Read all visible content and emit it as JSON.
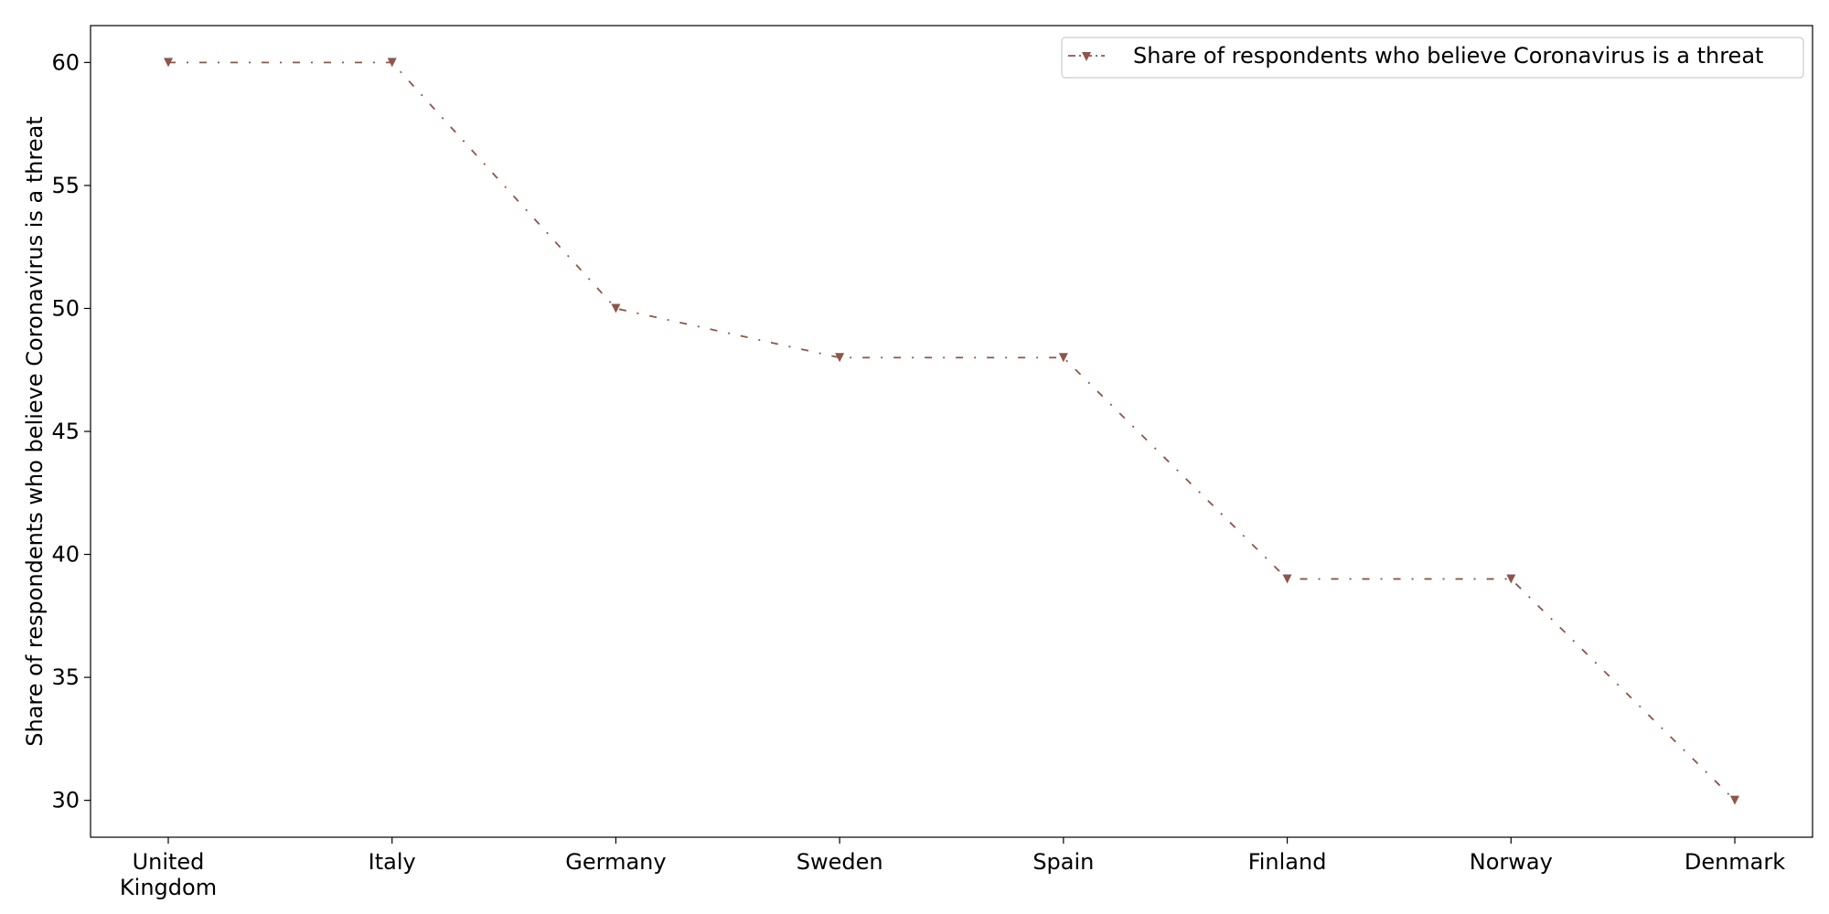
{
  "chart_data": {
    "type": "line",
    "categories": [
      "United Kingdom",
      "Italy",
      "Germany",
      "Sweden",
      "Spain",
      "Finland",
      "Norway",
      "Denmark"
    ],
    "category_labels": [
      [
        "United",
        "Kingdom"
      ],
      [
        "Italy"
      ],
      [
        "Germany"
      ],
      [
        "Sweden"
      ],
      [
        "Spain"
      ],
      [
        "Finland"
      ],
      [
        "Norway"
      ],
      [
        "Denmark"
      ]
    ],
    "series": [
      {
        "name": "Share of respondents who believe Coronavirus is a threat",
        "values": [
          60,
          60,
          50,
          48,
          48,
          39,
          39,
          30
        ],
        "color": "#8c564b",
        "marker": "triangle-down",
        "line_style": "dash-dot"
      }
    ],
    "title": "",
    "xlabel": "",
    "ylabel": "Share of respondents who believe Coronavirus is a threat",
    "ylim": [
      28.5,
      61.5
    ],
    "yticks": [
      30,
      35,
      40,
      45,
      50,
      55,
      60
    ],
    "grid": false,
    "legend_position": "top-right"
  }
}
